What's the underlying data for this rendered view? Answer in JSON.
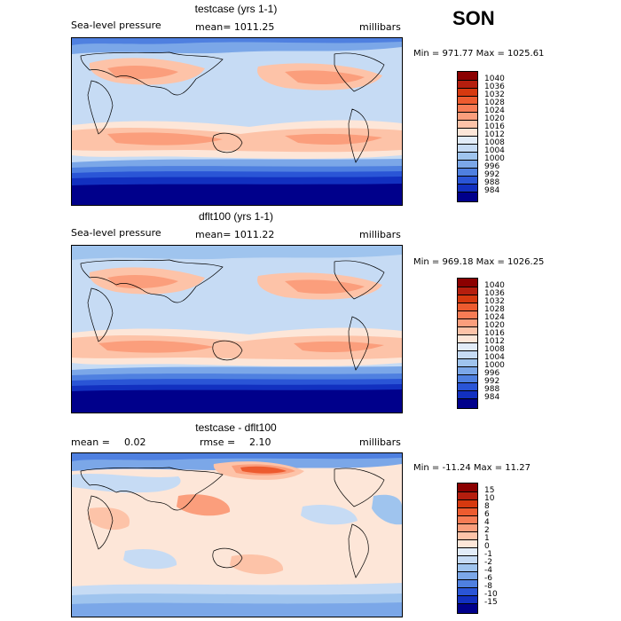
{
  "season": "SON",
  "panels": [
    {
      "title": "testcase (yrs 1-1)",
      "variable": "Sea-level pressure",
      "stat": "mean= 1011.25",
      "units": "millibars",
      "minmax": "Min = 971.77 Max = 1025.61",
      "levels": [
        "1040",
        "1036",
        "1032",
        "1028",
        "1024",
        "1020",
        "1016",
        "1012",
        "1008",
        "1004",
        "1000",
        "996",
        "992",
        "988",
        "984"
      ],
      "colors": [
        "#8b0000",
        "#b51e0e",
        "#d6390f",
        "#ed5b2f",
        "#f77c55",
        "#fb9e7c",
        "#fdc3a8",
        "#fde6d8",
        "#e2ecf8",
        "#c6dbf4",
        "#9fc4ee",
        "#7ba7e8",
        "#4f80e0",
        "#2a55d6",
        "#1230c0",
        "#00008b"
      ]
    },
    {
      "title": "dflt100 (yrs 1-1)",
      "variable": "Sea-level pressure",
      "stat": "mean= 1011.22",
      "units": "millibars",
      "minmax": "Min = 969.18 Max = 1026.25",
      "levels": [
        "1040",
        "1036",
        "1032",
        "1028",
        "1024",
        "1020",
        "1016",
        "1012",
        "1008",
        "1004",
        "1000",
        "996",
        "992",
        "988",
        "984"
      ],
      "colors": [
        "#8b0000",
        "#b51e0e",
        "#d6390f",
        "#ed5b2f",
        "#f77c55",
        "#fb9e7c",
        "#fdc3a8",
        "#fde6d8",
        "#e2ecf8",
        "#c6dbf4",
        "#9fc4ee",
        "#7ba7e8",
        "#4f80e0",
        "#2a55d6",
        "#1230c0",
        "#00008b"
      ]
    },
    {
      "title": "testcase - dflt100",
      "mean_label": "mean =",
      "mean_value": "0.02",
      "rmse_label": "rmse =",
      "rmse_value": "2.10",
      "units": "millibars",
      "minmax": "Min = -11.24 Max =   11.27",
      "levels": [
        "15",
        "10",
        "8",
        "6",
        "4",
        "2",
        "1",
        "0",
        "-1",
        "-2",
        "-4",
        "-6",
        "-8",
        "-10",
        "-15"
      ],
      "colors": [
        "#8b0000",
        "#b51e0e",
        "#d6390f",
        "#ed5b2f",
        "#f77c55",
        "#fb9e7c",
        "#fdc3a8",
        "#fde6d8",
        "#e2ecf8",
        "#c6dbf4",
        "#9fc4ee",
        "#7ba7e8",
        "#4f80e0",
        "#2a55d6",
        "#1230c0",
        "#00008b"
      ]
    }
  ]
}
